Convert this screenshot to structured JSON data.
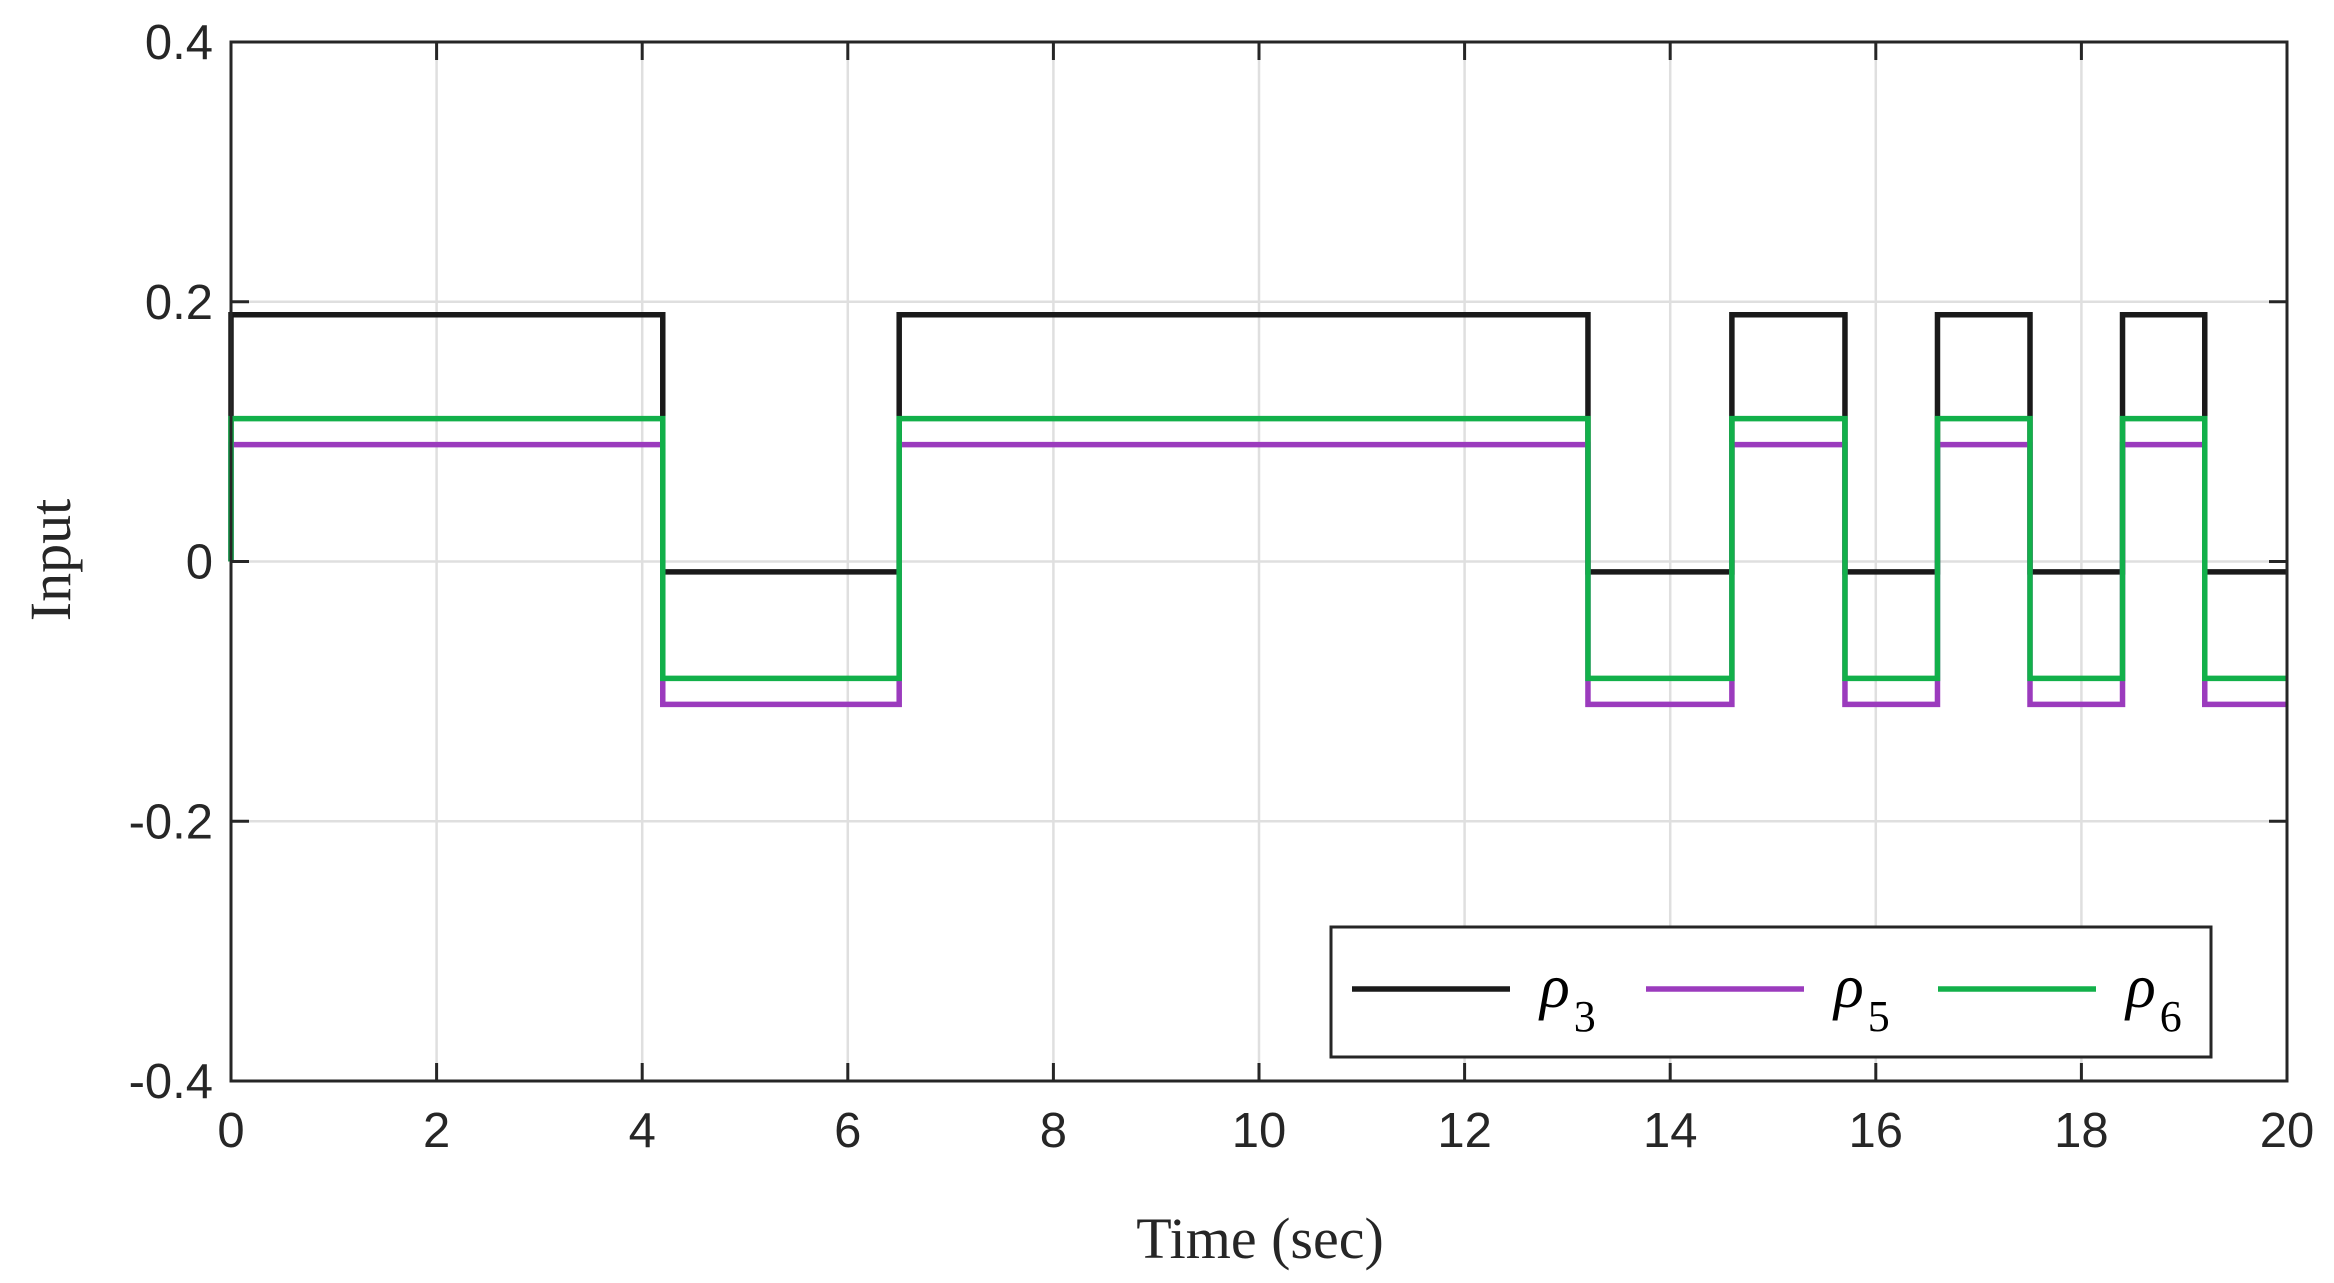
{
  "chart_data": {
    "type": "line",
    "title": "",
    "xlabel": "Time (sec)",
    "ylabel": "Input",
    "xlim": [
      0,
      20
    ],
    "ylim": [
      -0.4,
      0.4
    ],
    "xticks": [
      0,
      2,
      4,
      6,
      8,
      10,
      12,
      14,
      16,
      18,
      20
    ],
    "xtick_labels": [
      "0",
      "2",
      "4",
      "6",
      "8",
      "10",
      "12",
      "14",
      "16",
      "18",
      "20"
    ],
    "yticks": [
      -0.4,
      -0.2,
      0,
      0.2,
      0.4
    ],
    "ytick_labels": [
      "-0.4",
      "-0.2",
      "0",
      "0.2",
      "0.4"
    ],
    "grid": true,
    "legend_position": "bottom-right",
    "legend_orientation": "horizontal",
    "series": [
      {
        "name": "ρ3",
        "symbol": "ρ",
        "subscript": "3",
        "color": "#1a1a1a",
        "step": true,
        "x": [
          0,
          4.2,
          6.5,
          13.2,
          14.6,
          15.7,
          16.6,
          17.5,
          18.4,
          19.2,
          20
        ],
        "y": [
          0.19,
          -0.008,
          0.19,
          -0.008,
          0.19,
          -0.008,
          0.19,
          -0.008,
          0.19,
          -0.008,
          -0.008
        ]
      },
      {
        "name": "ρ5",
        "symbol": "ρ",
        "subscript": "5",
        "color": "#9b3bbd",
        "step": true,
        "x": [
          0,
          4.2,
          6.5,
          13.2,
          14.6,
          15.7,
          16.6,
          17.5,
          18.4,
          19.2,
          20
        ],
        "y": [
          0.09,
          -0.11,
          0.09,
          -0.11,
          0.09,
          -0.11,
          0.09,
          -0.11,
          0.09,
          -0.11,
          -0.11
        ]
      },
      {
        "name": "ρ6",
        "symbol": "ρ",
        "subscript": "6",
        "color": "#12b04a",
        "step": true,
        "x": [
          0,
          4.2,
          6.5,
          13.2,
          14.6,
          15.7,
          16.6,
          17.5,
          18.4,
          19.2,
          20
        ],
        "y": [
          0.11,
          -0.09,
          0.11,
          -0.09,
          0.11,
          -0.09,
          0.11,
          -0.09,
          0.11,
          -0.09,
          -0.09
        ]
      }
    ]
  }
}
